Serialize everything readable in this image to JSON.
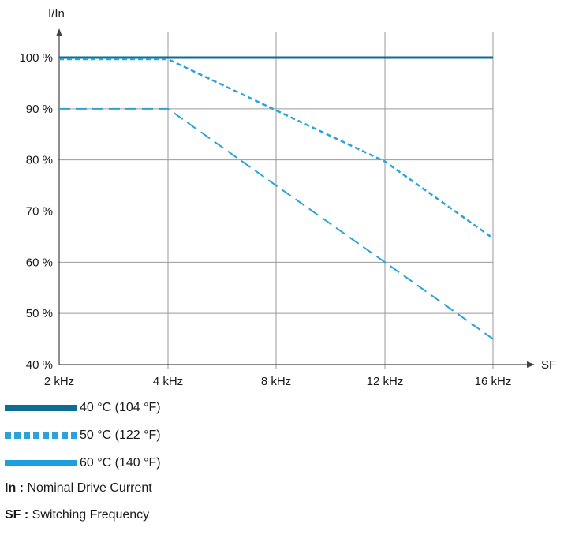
{
  "chart_data": {
    "type": "line",
    "ylabel": "I/In",
    "xlabel": "SF",
    "x_categories": [
      "2 kHz",
      "4 kHz",
      "8 kHz",
      "12 kHz",
      "16 kHz"
    ],
    "y_ticks": [
      "100 %",
      "90 %",
      "80 %",
      "70 %",
      "60 %",
      "50 %",
      "40 %"
    ],
    "ylim": [
      40,
      100
    ],
    "grid": true,
    "series": [
      {
        "name": "40 °C (104 °F)",
        "color": "#0e6c94",
        "style": "solid",
        "values": [
          100,
          100,
          100,
          100,
          100
        ]
      },
      {
        "name": "50 °C (122 °F)",
        "color": "#2ba3d8",
        "style": "short-dash",
        "values": [
          100,
          100,
          90,
          80,
          65
        ]
      },
      {
        "name": "60 °C (140 °F)",
        "color": "#2ba3d8",
        "style": "long-dash",
        "values": [
          90,
          90,
          75,
          60,
          45
        ]
      }
    ]
  },
  "legend": [
    {
      "label": "40 °C (104 °F)",
      "color": "#0e6c94",
      "style": "solid"
    },
    {
      "label": "50 °C (122 °F)",
      "color": "#2ba3d8",
      "style": "dashed"
    },
    {
      "label": "60 °C (140 °F)",
      "color": "#1aa0e0",
      "style": "solid"
    }
  ],
  "notes": [
    {
      "key": "In :",
      "text": " Nominal Drive Current"
    },
    {
      "key": "SF :",
      "text": " Switching Frequency"
    }
  ]
}
